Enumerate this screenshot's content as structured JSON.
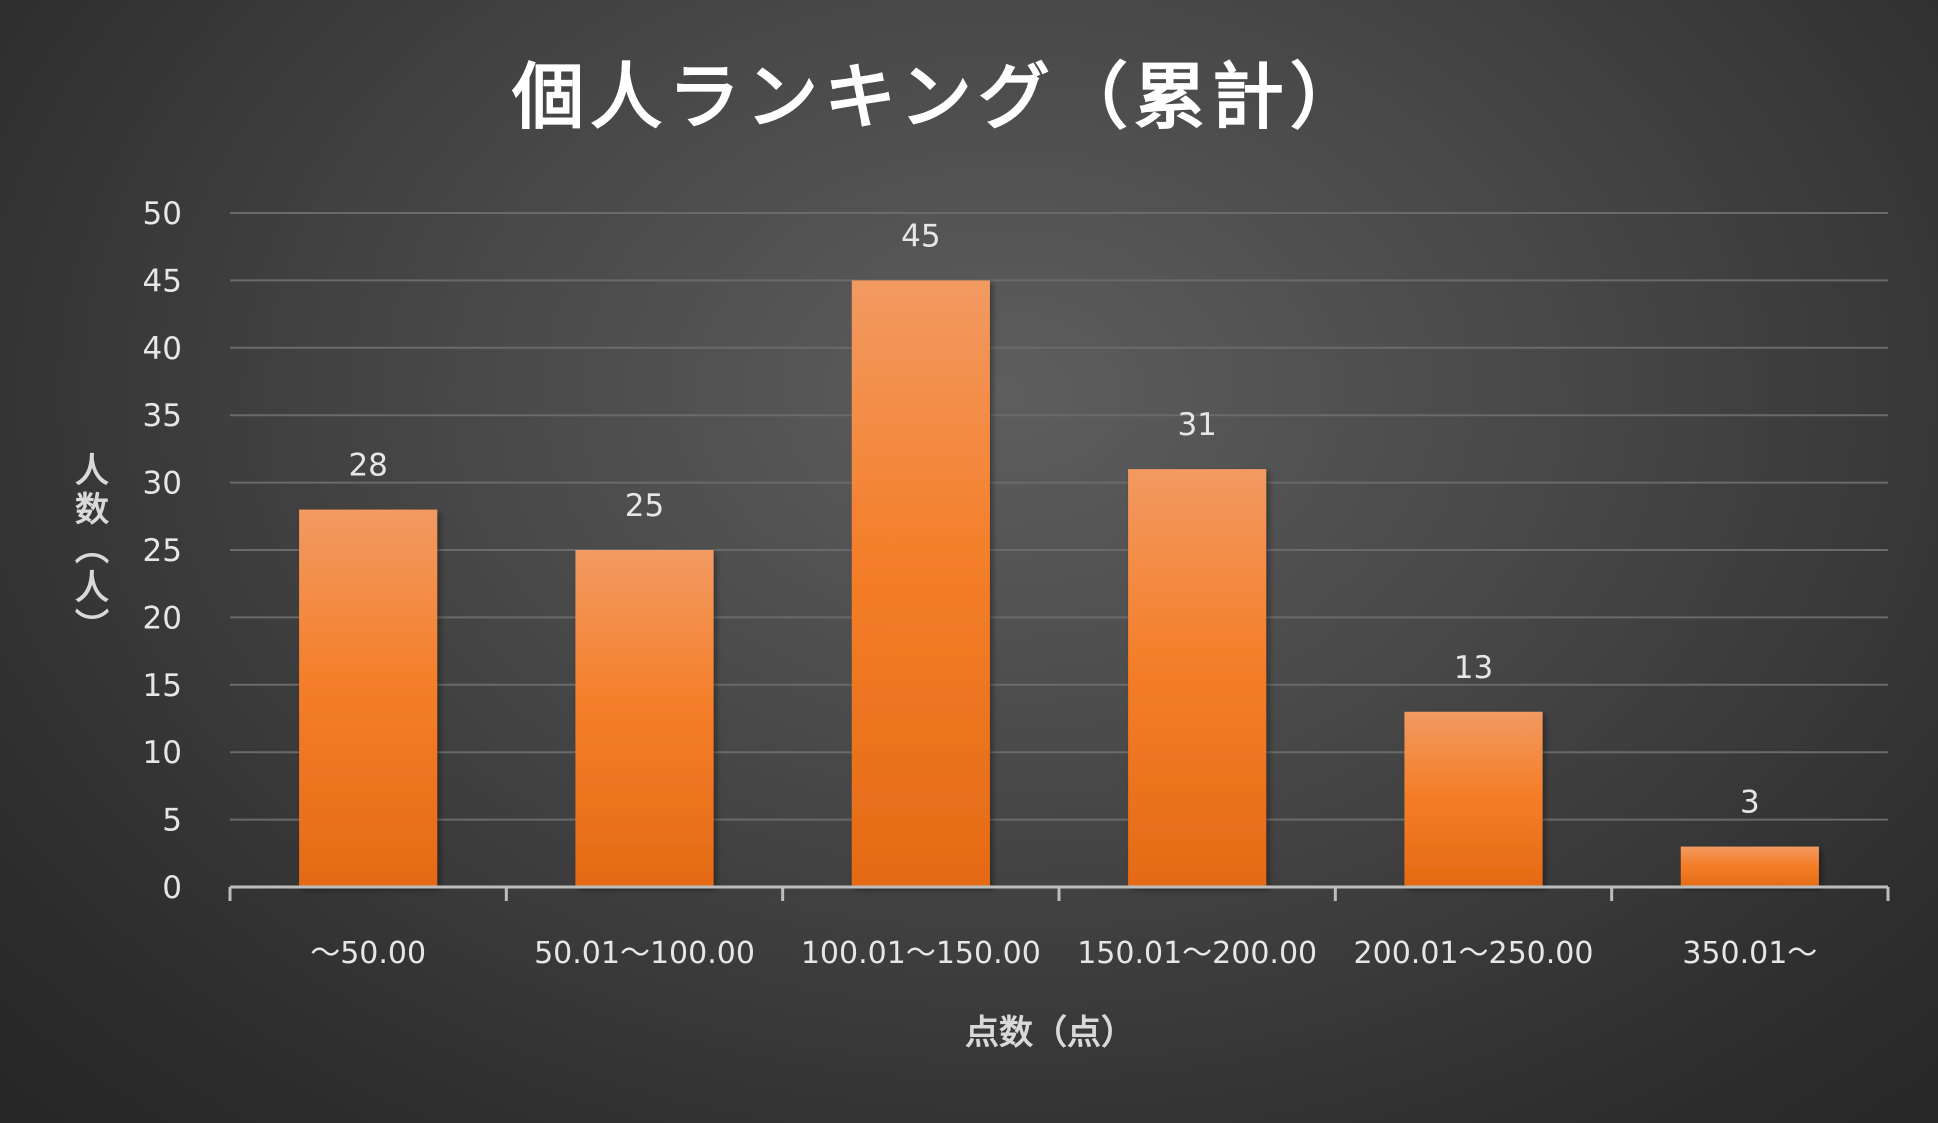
{
  "chart_data": {
    "type": "bar",
    "title": "個人ランキング（累計）",
    "xlabel": "点数（点）",
    "ylabel": "人数（人）",
    "categories": [
      "～50.00",
      "50.01～100.00",
      "100.01～150.00",
      "150.01～200.00",
      "200.01～250.00",
      "350.01～"
    ],
    "values": [
      28,
      25,
      45,
      31,
      13,
      3
    ],
    "ylim": [
      0,
      50
    ],
    "yticks": [
      0,
      5,
      10,
      15,
      20,
      25,
      30,
      35,
      40,
      45,
      50
    ],
    "grid": true,
    "data_labels": true,
    "legend": "none",
    "colors": {
      "bar_top": "#f29a62",
      "bar_mid": "#f47f2a",
      "bar_bottom": "#e56a15",
      "background": "#474747",
      "gridline": "#6a6a6a",
      "text": "#e6e6e6"
    }
  }
}
